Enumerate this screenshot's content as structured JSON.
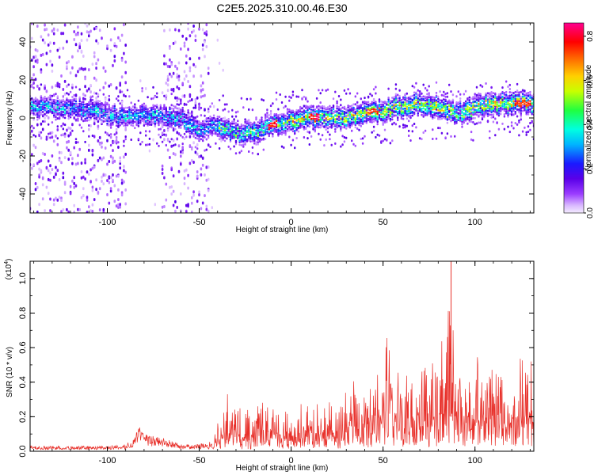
{
  "figure": {
    "title": "C2E5.2025.310.00.46.E30"
  },
  "chart_data": [
    {
      "type": "heatmap",
      "title": "C2E5.2025.310.00.46.E30",
      "xlabel": "Height of straight line (km)",
      "ylabel": "Frequency (Hz)",
      "xlim": [
        -142,
        132
      ],
      "ylim": [
        -50,
        50
      ],
      "x_ticks": [
        -100,
        -50,
        0,
        50,
        100
      ],
      "x_tick_labels": [
        "-100",
        "-50",
        "0",
        "50",
        "100"
      ],
      "y_ticks": [
        -40,
        -20,
        0,
        20,
        40
      ],
      "y_tick_labels": [
        "-40",
        "-20",
        "0",
        "20",
        "40"
      ],
      "colorbar": {
        "label": "Normalized spectral amplitude",
        "range": [
          0,
          0.86
        ],
        "ticks": [
          0.0,
          0.2,
          0.4,
          0.6,
          0.8
        ],
        "tick_labels": [
          "0.0",
          "0.2",
          "0.4",
          "0.6",
          "0.8"
        ],
        "colormap": "rainbow: white-lavender to violet, blue, cyan, green, yellow, orange, red, magenta"
      },
      "band_center_hz": [
        {
          "x": -130,
          "y": 3
        },
        {
          "x": -110,
          "y": 2
        },
        {
          "x": -100,
          "y": 1
        },
        {
          "x": -90,
          "y": 0
        },
        {
          "x": -80,
          "y": 1
        },
        {
          "x": -60,
          "y": 0
        },
        {
          "x": -50,
          "y": -4
        },
        {
          "x": -40,
          "y": -2
        },
        {
          "x": -30,
          "y": -4
        },
        {
          "x": -20,
          "y": -4
        },
        {
          "x": -10,
          "y": -2
        },
        {
          "x": 0,
          "y": -1
        },
        {
          "x": 10,
          "y": 0
        },
        {
          "x": 20,
          "y": 0
        },
        {
          "x": 30,
          "y": 0
        },
        {
          "x": 40,
          "y": 1
        },
        {
          "x": 50,
          "y": 2
        },
        {
          "x": 60,
          "y": 3
        },
        {
          "x": 70,
          "y": 4
        },
        {
          "x": 80,
          "y": 3
        },
        {
          "x": 90,
          "y": 1
        },
        {
          "x": 100,
          "y": 3
        },
        {
          "x": 110,
          "y": 4
        },
        {
          "x": 120,
          "y": 4
        },
        {
          "x": 130,
          "y": 4
        }
      ],
      "peak_regions": [
        {
          "x_range": [
            -12,
            -8
          ],
          "y": -2,
          "value": 0.85
        },
        {
          "x_range": [
            10,
            15
          ],
          "y": 0,
          "value": 0.85
        },
        {
          "x_range": [
            42,
            48
          ],
          "y": 2,
          "value": 0.8
        },
        {
          "x_range": [
            122,
            130
          ],
          "y": 4,
          "value": 0.8
        }
      ],
      "noise_region_x": [
        [
          -142,
          -90
        ],
        [
          -70,
          -45
        ]
      ]
    },
    {
      "type": "line",
      "xlabel": "Height of straight line (km)",
      "ylabel": "SNR (10 * v/v)",
      "y_scale_label": "(x10",
      "y_scale_exponent": "4",
      "xlim": [
        -142,
        132
      ],
      "ylim": [
        0,
        1.1
      ],
      "x_ticks": [
        -100,
        -50,
        0,
        50,
        100
      ],
      "x_tick_labels": [
        "-100",
        "-50",
        "0",
        "50",
        "100"
      ],
      "y_ticks": [
        0.0,
        0.2,
        0.4,
        0.6,
        0.8,
        1.0
      ],
      "y_tick_labels": [
        "0.0",
        "0.2",
        "0.4",
        "0.6",
        "0.8",
        "1.0"
      ],
      "series": [
        {
          "color": "#e8302a",
          "x": [
            -142,
            -130,
            -120,
            -110,
            -100,
            -90,
            -85,
            -83,
            -80,
            -75,
            -70,
            -65,
            -60,
            -55,
            -50,
            -45,
            -40,
            -38,
            -35,
            -30,
            -25,
            -20,
            -15,
            -10,
            -8,
            -5,
            0,
            5,
            10,
            15,
            20,
            25,
            30,
            33,
            35,
            40,
            45,
            50,
            52,
            55,
            60,
            65,
            70,
            75,
            80,
            85,
            87,
            90,
            95,
            100,
            105,
            110,
            115,
            120,
            125,
            130,
            132
          ],
          "y": [
            0.03,
            0.03,
            0.03,
            0.03,
            0.03,
            0.04,
            0.08,
            0.15,
            0.1,
            0.09,
            0.08,
            0.06,
            0.04,
            0.04,
            0.04,
            0.06,
            0.18,
            0.25,
            0.32,
            0.28,
            0.22,
            0.26,
            0.28,
            0.34,
            0.3,
            0.24,
            0.22,
            0.28,
            0.3,
            0.26,
            0.38,
            0.3,
            0.33,
            0.48,
            0.4,
            0.3,
            0.45,
            0.55,
            0.65,
            0.45,
            0.5,
            0.48,
            0.58,
            0.45,
            0.55,
            0.75,
            1.1,
            0.55,
            0.5,
            0.62,
            0.48,
            0.55,
            0.58,
            0.5,
            0.52,
            0.54,
            0.45
          ]
        }
      ]
    }
  ]
}
